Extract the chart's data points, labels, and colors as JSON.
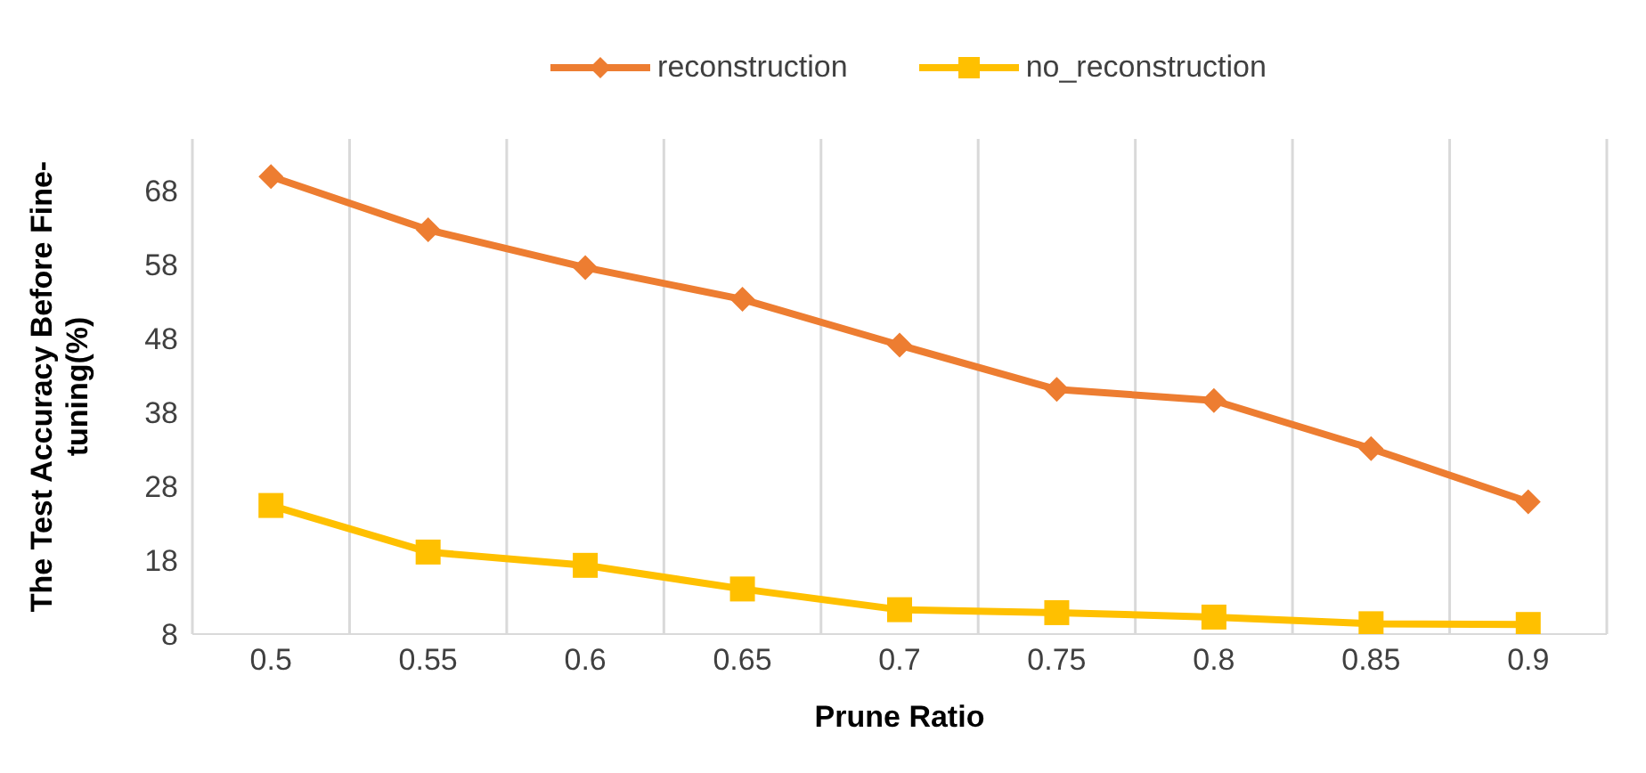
{
  "chart_data": {
    "type": "line",
    "xlabel": "Prune Ratio",
    "ylabel": "The Test Accuracy Before Fine-tuning(%)",
    "categories": [
      "0.5",
      "0.55",
      "0.6",
      "0.65",
      "0.7",
      "0.75",
      "0.8",
      "0.85",
      "0.9"
    ],
    "series": [
      {
        "name": "reconstruction",
        "color": "#ed7d31",
        "marker": "diamond",
        "values": [
          69.9,
          62.7,
          57.6,
          53.3,
          47.1,
          41.1,
          39.6,
          33.1,
          25.9
        ]
      },
      {
        "name": "no_reconstruction",
        "color": "#ffc000",
        "marker": "square",
        "values": [
          25.4,
          19.1,
          17.3,
          14.1,
          11.3,
          10.9,
          10.3,
          9.4,
          9.3
        ]
      }
    ],
    "ylim": [
      8,
      75
    ],
    "yticks": [
      8,
      18,
      28,
      38,
      48,
      58,
      68
    ],
    "grid": "x",
    "legend": "top",
    "line_style": "solid"
  }
}
